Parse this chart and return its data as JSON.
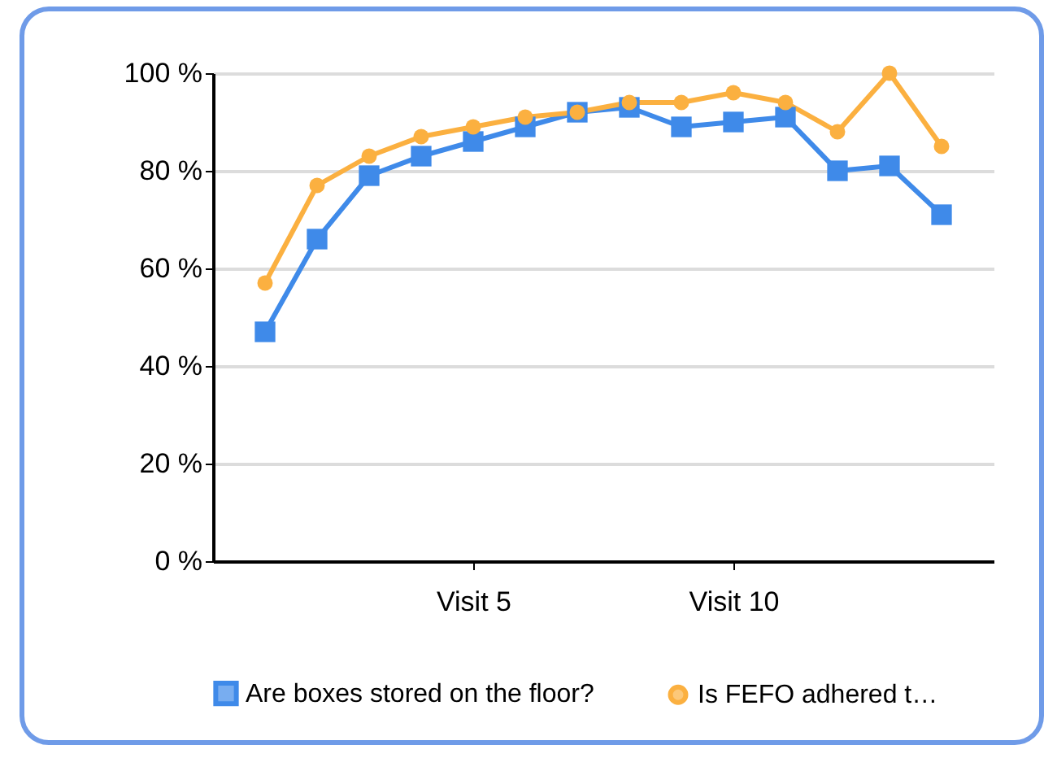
{
  "chart_data": {
    "type": "line",
    "categories": [
      null,
      null,
      null,
      null,
      "Visit 5",
      null,
      null,
      null,
      null,
      "Visit 10",
      null,
      null,
      null,
      null
    ],
    "series": [
      {
        "name": "Are boxes stored on the floor?",
        "color": "#3f8ae9",
        "marker": "square",
        "values": [
          47,
          66,
          79,
          83,
          86,
          89,
          92,
          93,
          89,
          90,
          91,
          80,
          81,
          71
        ]
      },
      {
        "name": "Is FEFO adhered t…",
        "color": "#fbb040",
        "marker": "circle",
        "values": [
          57,
          77,
          83,
          87,
          89,
          91,
          92,
          94,
          94,
          96,
          94,
          88,
          100,
          85
        ]
      }
    ],
    "ylim": [
      0,
      100
    ],
    "yticks": [
      {
        "value": 0,
        "label": "0 %"
      },
      {
        "value": 20,
        "label": "20 %"
      },
      {
        "value": 40,
        "label": "40 %"
      },
      {
        "value": 60,
        "label": "60 %"
      },
      {
        "value": 80,
        "label": "80 %"
      },
      {
        "value": 100,
        "label": "100 %"
      }
    ],
    "grid": "y",
    "legend": "bottom",
    "line_style": "solid"
  }
}
